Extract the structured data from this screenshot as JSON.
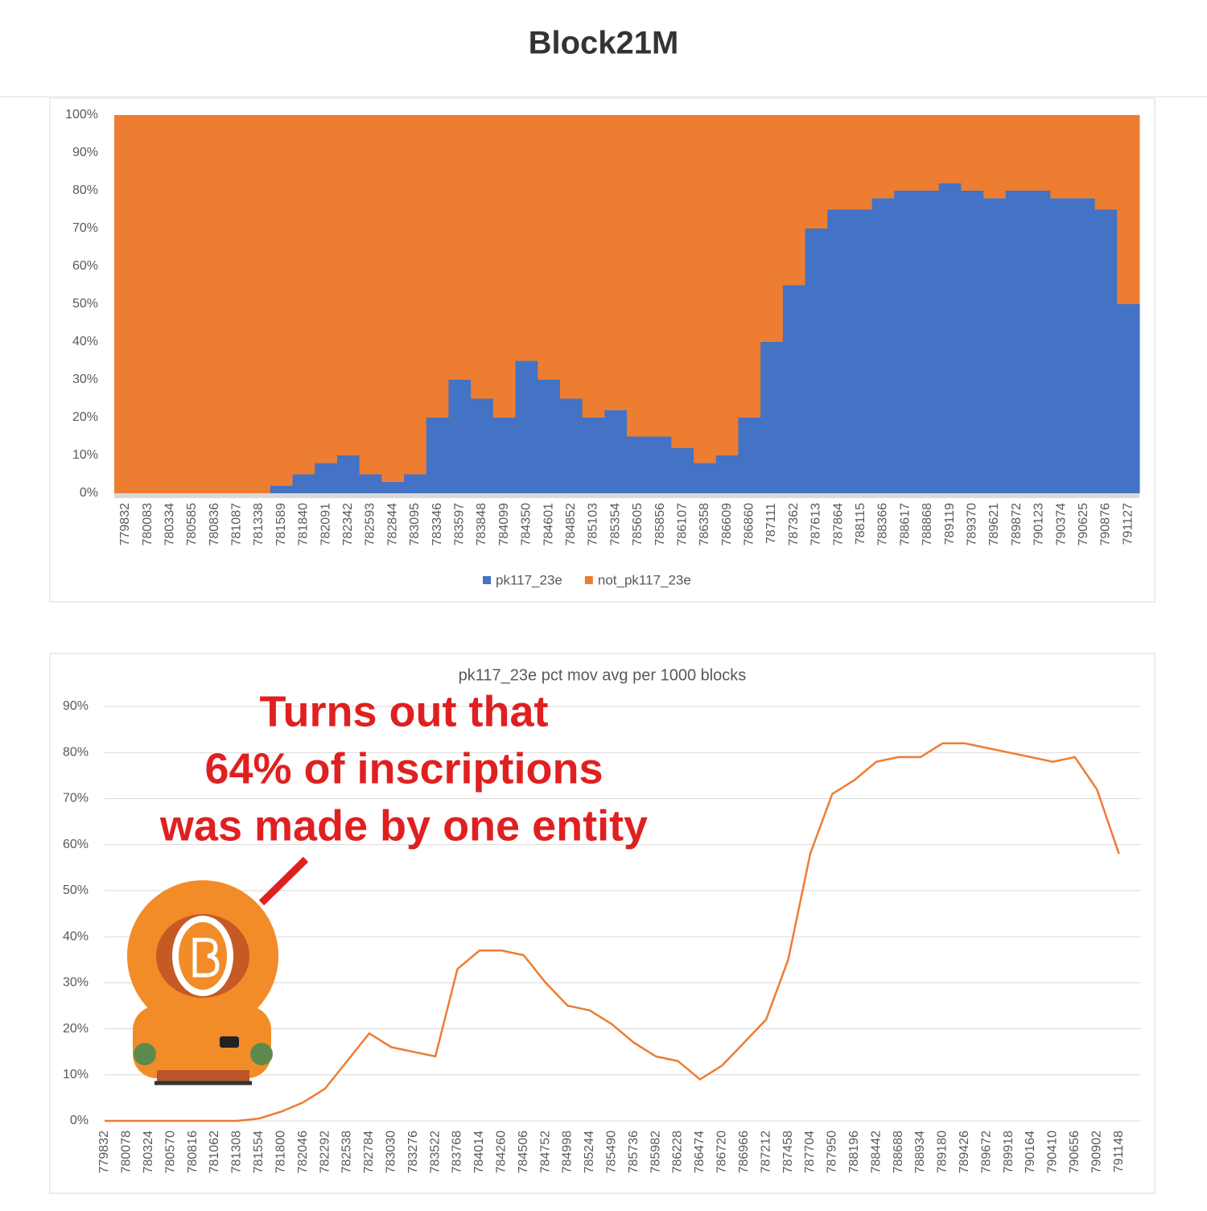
{
  "header": {
    "title": "Block21M"
  },
  "chart_data": [
    {
      "type": "stacked-bar",
      "categories": [
        "779832",
        "780083",
        "780334",
        "780585",
        "780836",
        "781087",
        "781338",
        "781589",
        "781840",
        "782091",
        "782342",
        "782593",
        "782844",
        "783095",
        "783346",
        "783597",
        "783848",
        "784099",
        "784350",
        "784601",
        "784852",
        "785103",
        "785354",
        "785605",
        "785856",
        "786107",
        "786358",
        "786609",
        "786860",
        "787111",
        "787362",
        "787613",
        "787864",
        "788115",
        "788366",
        "788617",
        "788868",
        "789119",
        "789370",
        "789621",
        "789872",
        "790123",
        "790374",
        "790625",
        "790876",
        "791127"
      ],
      "series": [
        {
          "name": "pk117_23e",
          "color": "#4472c4",
          "values": [
            0,
            0,
            0,
            0,
            0,
            0,
            0,
            2,
            5,
            8,
            10,
            5,
            3,
            5,
            20,
            30,
            25,
            20,
            35,
            30,
            25,
            20,
            22,
            15,
            15,
            12,
            8,
            10,
            20,
            40,
            55,
            70,
            75,
            75,
            78,
            80,
            80,
            82,
            80,
            78,
            80,
            80,
            78,
            78,
            75,
            50
          ]
        },
        {
          "name": "not_pk117_23e",
          "color": "#ed7d31",
          "values": [
            100,
            100,
            100,
            100,
            100,
            100,
            100,
            98,
            95,
            92,
            90,
            95,
            97,
            95,
            80,
            70,
            75,
            80,
            65,
            70,
            75,
            80,
            78,
            85,
            85,
            88,
            92,
            90,
            80,
            60,
            45,
            30,
            25,
            25,
            22,
            20,
            20,
            18,
            20,
            22,
            20,
            20,
            22,
            22,
            25,
            50
          ]
        }
      ],
      "ylim": [
        0,
        100
      ],
      "yticks": [
        {
          "value": 0,
          "label": "0%"
        },
        {
          "value": 10,
          "label": "10%"
        },
        {
          "value": 20,
          "label": "20%"
        },
        {
          "value": 30,
          "label": "30%"
        },
        {
          "value": 40,
          "label": "40%"
        },
        {
          "value": 50,
          "label": "50%"
        },
        {
          "value": 60,
          "label": "60%"
        },
        {
          "value": 70,
          "label": "70%"
        },
        {
          "value": 80,
          "label": "80%"
        },
        {
          "value": 90,
          "label": "90%"
        },
        {
          "value": 100,
          "label": "100%"
        }
      ],
      "legend": "bottom"
    },
    {
      "type": "line",
      "title": "pk117_23e pct mov avg per 1000 blocks",
      "categories": [
        "779832",
        "780078",
        "780324",
        "780570",
        "780816",
        "781062",
        "781308",
        "781554",
        "781800",
        "782046",
        "782292",
        "782538",
        "782784",
        "783030",
        "783276",
        "783522",
        "783768",
        "784014",
        "784260",
        "784506",
        "784752",
        "784998",
        "785244",
        "785490",
        "785736",
        "785982",
        "786228",
        "786474",
        "786720",
        "786966",
        "787212",
        "787458",
        "787704",
        "787950",
        "788196",
        "788442",
        "788688",
        "788934",
        "789180",
        "789426",
        "789672",
        "789918",
        "790164",
        "790410",
        "790656",
        "790902",
        "791148"
      ],
      "values": [
        0,
        0,
        0,
        0,
        0,
        0,
        0,
        0.5,
        2,
        4,
        7,
        13,
        19,
        16,
        15,
        14,
        33,
        37,
        37,
        36,
        30,
        25,
        24,
        21,
        17,
        14,
        13,
        9,
        12,
        17,
        22,
        35,
        58,
        71,
        74,
        78,
        79,
        79,
        82,
        82,
        81,
        80,
        79,
        78,
        79,
        72,
        58
      ],
      "color": "#ed7d31",
      "ylim": [
        0,
        90
      ],
      "yticks": [
        {
          "value": 0,
          "label": "0%"
        },
        {
          "value": 10,
          "label": "10%"
        },
        {
          "value": 20,
          "label": "20%"
        },
        {
          "value": 30,
          "label": "30%"
        },
        {
          "value": 40,
          "label": "40%"
        },
        {
          "value": 50,
          "label": "50%"
        },
        {
          "value": 60,
          "label": "60%"
        },
        {
          "value": 70,
          "label": "70%"
        },
        {
          "value": 80,
          "label": "80%"
        },
        {
          "value": 90,
          "label": "90%"
        }
      ],
      "grid": true,
      "annotations": [
        "Turns out that",
        "64% of inscriptions",
        "was made by one entity"
      ]
    }
  ]
}
